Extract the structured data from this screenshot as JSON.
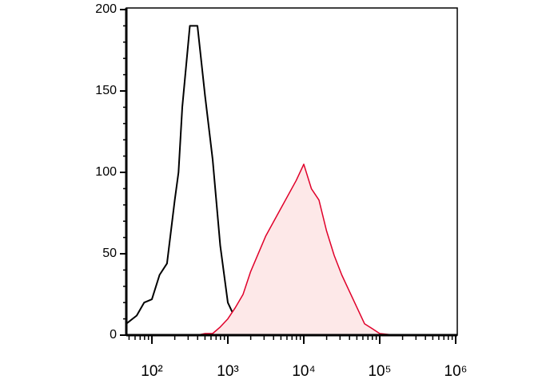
{
  "chart_data": {
    "type": "line",
    "log_x": true,
    "minor_ticks": true,
    "x": [
      46,
      63,
      79,
      100,
      126,
      158,
      200,
      224,
      251,
      316,
      398,
      501,
      631,
      794,
      1000,
      1259,
      1585,
      1995,
      3162,
      5012,
      7943,
      10000,
      12589,
      15849,
      19953,
      25119,
      31623,
      39811,
      50119,
      63096,
      79433,
      100000,
      158489,
      1000000
    ],
    "series": [
      {
        "color": "#000000",
        "fill": null,
        "values": [
          7,
          12,
          20,
          22,
          37,
          44,
          83,
          100,
          140,
          190,
          190,
          147,
          108,
          55,
          20,
          10,
          7,
          5,
          2,
          1,
          1,
          0,
          0,
          0,
          0,
          0,
          0,
          0,
          0,
          0,
          0,
          0,
          0,
          0
        ]
      },
      {
        "color": "#e0002a",
        "fill": "#fde8e8",
        "values": [
          0,
          0,
          0,
          0,
          0,
          0,
          0,
          0,
          0,
          0,
          0,
          1,
          1,
          5,
          10,
          17,
          25,
          39,
          61,
          78,
          95,
          105,
          90,
          83,
          64,
          49,
          37,
          27,
          17,
          7,
          4,
          1,
          0,
          0
        ]
      }
    ],
    "xlim": [
      46,
      1050000
    ],
    "xticks": [
      {
        "value": 100,
        "label": "10²"
      },
      {
        "value": 1000,
        "label": "10³"
      },
      {
        "value": 10000,
        "label": "10⁴"
      },
      {
        "value": 100000,
        "label": "10⁵"
      },
      {
        "value": 1000000,
        "label": "10⁶"
      }
    ],
    "ylim": [
      0,
      200
    ],
    "yticks": [
      0,
      50,
      100,
      150,
      200
    ]
  }
}
